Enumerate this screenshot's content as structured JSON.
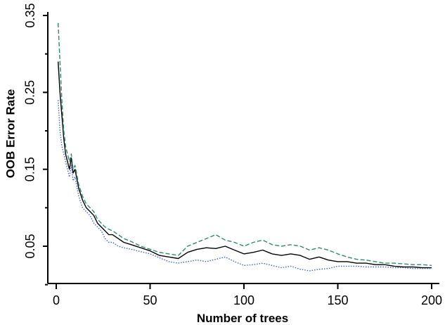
{
  "chart_data": {
    "type": "line",
    "title": "",
    "xlabel": "Number of trees",
    "ylabel": "OOB Error Rate",
    "xlim": [
      1,
      200
    ],
    "ylim": [
      0.005,
      0.35
    ],
    "x_ticks": [
      0,
      50,
      100,
      150,
      200
    ],
    "y_ticks": [
      0.05,
      0.15,
      0.25,
      0.35
    ],
    "y_tick_labels": [
      "0.05",
      "0.15",
      "0.25",
      "0.35"
    ],
    "grid": false,
    "legend": "none",
    "series": [
      {
        "style": "solid",
        "color": "#000000",
        "x": [
          1,
          2,
          3,
          4,
          5,
          6,
          7,
          8,
          9,
          10,
          12,
          14,
          16,
          18,
          20,
          22,
          24,
          26,
          28,
          30,
          33,
          36,
          40,
          45,
          50,
          55,
          60,
          65,
          70,
          75,
          80,
          85,
          90,
          95,
          100,
          105,
          110,
          115,
          120,
          125,
          130,
          135,
          140,
          145,
          150,
          155,
          160,
          165,
          170,
          175,
          180,
          185,
          190,
          195,
          200
        ],
        "y": [
          0.29,
          0.25,
          0.22,
          0.19,
          0.17,
          0.16,
          0.15,
          0.165,
          0.145,
          0.15,
          0.125,
          0.11,
          0.1,
          0.095,
          0.09,
          0.08,
          0.075,
          0.07,
          0.065,
          0.065,
          0.06,
          0.055,
          0.052,
          0.048,
          0.044,
          0.038,
          0.036,
          0.034,
          0.042,
          0.046,
          0.048,
          0.047,
          0.05,
          0.045,
          0.04,
          0.042,
          0.045,
          0.04,
          0.038,
          0.04,
          0.038,
          0.033,
          0.036,
          0.032,
          0.03,
          0.03,
          0.028,
          0.028,
          0.026,
          0.026,
          0.024,
          0.023,
          0.023,
          0.022,
          0.022
        ]
      },
      {
        "style": "dashed",
        "color": "#2e8b6e",
        "x": [
          1,
          2,
          3,
          4,
          5,
          6,
          7,
          8,
          9,
          10,
          12,
          14,
          16,
          18,
          20,
          22,
          24,
          26,
          28,
          30,
          33,
          36,
          40,
          45,
          50,
          55,
          60,
          65,
          70,
          75,
          80,
          85,
          90,
          95,
          100,
          105,
          110,
          115,
          120,
          125,
          130,
          135,
          140,
          145,
          150,
          155,
          160,
          165,
          170,
          175,
          180,
          185,
          190,
          195,
          200
        ],
        "y": [
          0.34,
          0.29,
          0.24,
          0.2,
          0.18,
          0.17,
          0.16,
          0.17,
          0.15,
          0.155,
          0.13,
          0.115,
          0.105,
          0.1,
          0.095,
          0.085,
          0.08,
          0.075,
          0.072,
          0.07,
          0.065,
          0.06,
          0.056,
          0.05,
          0.046,
          0.042,
          0.04,
          0.038,
          0.05,
          0.055,
          0.06,
          0.065,
          0.058,
          0.055,
          0.05,
          0.055,
          0.058,
          0.052,
          0.05,
          0.052,
          0.05,
          0.045,
          0.048,
          0.045,
          0.04,
          0.036,
          0.033,
          0.032,
          0.03,
          0.028,
          0.028,
          0.027,
          0.026,
          0.026,
          0.025
        ]
      },
      {
        "style": "dotted",
        "color": "#3f66d8",
        "x": [
          1,
          2,
          3,
          4,
          5,
          6,
          7,
          8,
          9,
          10,
          12,
          14,
          16,
          18,
          20,
          22,
          24,
          26,
          28,
          30,
          33,
          36,
          40,
          45,
          50,
          55,
          60,
          65,
          70,
          75,
          80,
          85,
          90,
          95,
          100,
          105,
          110,
          115,
          120,
          125,
          130,
          135,
          140,
          145,
          150,
          155,
          160,
          165,
          170,
          175,
          180,
          185,
          190,
          195,
          200
        ],
        "y": [
          0.24,
          0.2,
          0.18,
          0.17,
          0.16,
          0.15,
          0.14,
          0.155,
          0.135,
          0.14,
          0.115,
          0.1,
          0.095,
          0.09,
          0.08,
          0.075,
          0.07,
          0.06,
          0.055,
          0.055,
          0.05,
          0.048,
          0.046,
          0.043,
          0.04,
          0.035,
          0.03,
          0.028,
          0.03,
          0.032,
          0.03,
          0.033,
          0.036,
          0.03,
          0.025,
          0.026,
          0.028,
          0.025,
          0.022,
          0.024,
          0.02,
          0.018,
          0.02,
          0.021,
          0.024,
          0.024,
          0.024,
          0.023,
          0.023,
          0.023,
          0.022,
          0.022,
          0.021,
          0.021,
          0.021
        ]
      }
    ]
  }
}
